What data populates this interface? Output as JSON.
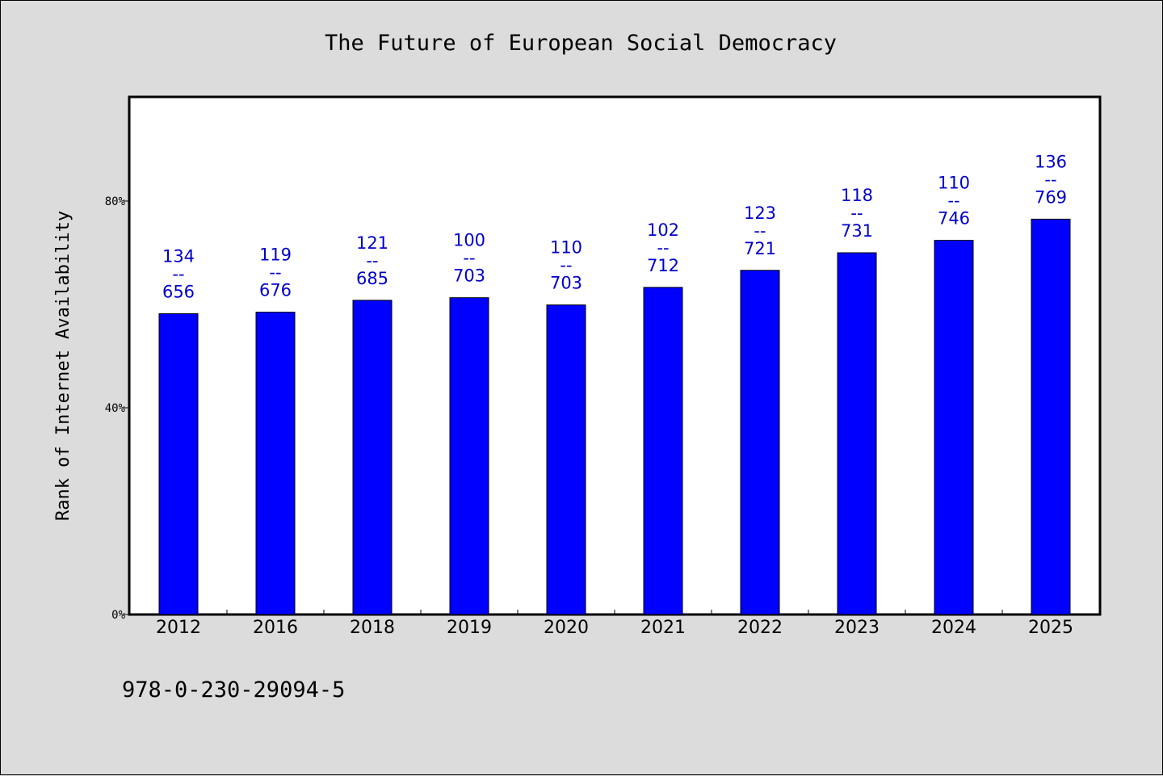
{
  "chart_data": {
    "type": "bar",
    "title": "The Future of European Social Democracy",
    "xlabel": "",
    "ylabel": "Rank of Internet Availability",
    "categories": [
      "2012",
      "2016",
      "2018",
      "2019",
      "2020",
      "2021",
      "2022",
      "2023",
      "2024",
      "2025"
    ],
    "values": [
      58.2,
      58.5,
      60.8,
      61.3,
      59.9,
      63.3,
      66.6,
      70.0,
      72.4,
      76.5
    ],
    "data_labels": [
      {
        "top": "134",
        "sep": "--",
        "bottom": "656"
      },
      {
        "top": "119",
        "sep": "--",
        "bottom": "676"
      },
      {
        "top": "121",
        "sep": "--",
        "bottom": "685"
      },
      {
        "top": "100",
        "sep": "--",
        "bottom": "703"
      },
      {
        "top": "110",
        "sep": "--",
        "bottom": "703"
      },
      {
        "top": "102",
        "sep": "--",
        "bottom": "712"
      },
      {
        "top": "123",
        "sep": "--",
        "bottom": "721"
      },
      {
        "top": "118",
        "sep": "--",
        "bottom": "731"
      },
      {
        "top": "110",
        "sep": "--",
        "bottom": "746"
      },
      {
        "top": "136",
        "sep": "--",
        "bottom": "769"
      }
    ],
    "ylim": [
      0,
      100
    ],
    "yticks": [
      0,
      40,
      80
    ],
    "ytick_labels": [
      "0%",
      "40%",
      "80%"
    ],
    "grid": false,
    "bar_color": "#0000ff",
    "label_color": "#0000cc"
  },
  "footnote": "978-0-230-29094-5"
}
